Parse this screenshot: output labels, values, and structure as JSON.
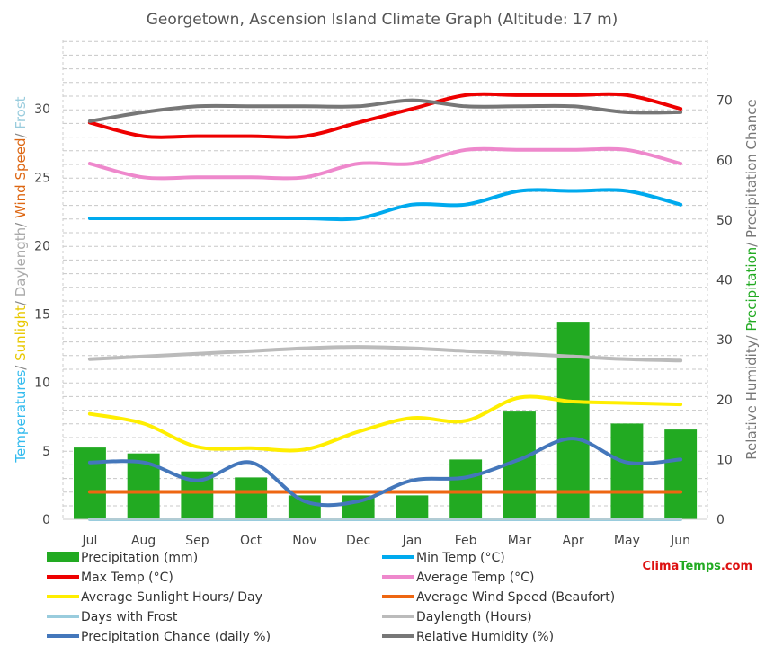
{
  "chart_data": {
    "type": "bar",
    "title": "Georgetown, Ascension Island Climate Graph (Altitude: 17 m)",
    "categories": [
      "Jul",
      "Aug",
      "Sep",
      "Oct",
      "Nov",
      "Dec",
      "Jan",
      "Feb",
      "Mar",
      "Apr",
      "May",
      "Jun"
    ],
    "y_left": {
      "ylim": [
        0,
        35
      ],
      "ticks": [
        0,
        5,
        10,
        15,
        20,
        25,
        30
      ],
      "label_parts": [
        {
          "text": "Temperatures",
          "color": "#33bbee"
        },
        {
          "text": "/",
          "color": "#888888"
        },
        {
          "text": " Sunlight",
          "color": "#e8c800"
        },
        {
          "text": "/ ",
          "color": "#888888"
        },
        {
          "text": "Daylength",
          "color": "#aaaaaa"
        },
        {
          "text": "/ ",
          "color": "#888888"
        },
        {
          "text": "Wind Speed",
          "color": "#dd6611"
        },
        {
          "text": "/ ",
          "color": "#888888"
        },
        {
          "text": "Frost",
          "color": "#99ccdd"
        }
      ]
    },
    "y_right": {
      "ylim": [
        0,
        80
      ],
      "ticks": [
        0,
        10,
        20,
        30,
        40,
        50,
        60,
        70
      ],
      "label_parts": [
        {
          "text": "Relative Humidity",
          "color": "#777777"
        },
        {
          "text": "/ ",
          "color": "#888888"
        },
        {
          "text": "Precipitation",
          "color": "#22aa22"
        },
        {
          "text": "/ Precipitation Chance",
          "color": "#777777"
        }
      ]
    },
    "grid": "horizontal-dashed",
    "series": [
      {
        "name": "Precipitation (mm)",
        "kind": "bar",
        "axis": "right",
        "color": "#22aa22",
        "values": [
          12,
          11,
          8,
          7,
          4,
          4,
          4,
          10,
          18,
          33,
          16,
          15
        ]
      },
      {
        "name": "Min Temp (°C)",
        "kind": "line",
        "axis": "left",
        "color": "#00aaee",
        "values": [
          22,
          22,
          22,
          22,
          22,
          22,
          23,
          23,
          24,
          24,
          24,
          23
        ]
      },
      {
        "name": "Max Temp (°C)",
        "kind": "line",
        "axis": "left",
        "color": "#ee0000",
        "values": [
          29,
          28,
          28,
          28,
          28,
          29,
          30,
          31,
          31,
          31,
          31,
          30
        ]
      },
      {
        "name": "Average Temp (°C)",
        "kind": "line",
        "axis": "left",
        "color": "#ee88cc",
        "values": [
          26,
          25,
          25,
          25,
          25,
          26,
          26,
          27,
          27,
          27,
          27,
          26
        ]
      },
      {
        "name": "Average Sunlight Hours/ Day",
        "kind": "line",
        "axis": "left",
        "color": "#ffee00",
        "values": [
          7.7,
          7.0,
          5.3,
          5.2,
          5.1,
          6.4,
          7.4,
          7.2,
          8.9,
          8.6,
          8.5,
          8.4
        ]
      },
      {
        "name": "Average Wind Speed (Beaufort)",
        "kind": "line",
        "axis": "left",
        "color": "#ee6611",
        "values": [
          2,
          2,
          2,
          2,
          2,
          2,
          2,
          2,
          2,
          2,
          2,
          2
        ]
      },
      {
        "name": "Days with Frost",
        "kind": "line",
        "axis": "left",
        "color": "#99ccdd",
        "values": [
          0,
          0,
          0,
          0,
          0,
          0,
          0,
          0,
          0,
          0,
          0,
          0
        ]
      },
      {
        "name": "Daylength (Hours)",
        "kind": "line",
        "axis": "left",
        "color": "#bbbbbb",
        "values": [
          11.7,
          11.9,
          12.1,
          12.3,
          12.5,
          12.6,
          12.5,
          12.3,
          12.1,
          11.9,
          11.7,
          11.6
        ]
      },
      {
        "name": "Precipitation Chance (daily %)",
        "kind": "line",
        "axis": "right",
        "color": "#4477bb",
        "values": [
          9.5,
          9.5,
          6.5,
          9.5,
          3,
          3,
          6.5,
          7,
          10,
          13.5,
          9.5,
          10
        ]
      },
      {
        "name": "Relative Humidity (%)",
        "kind": "line",
        "axis": "right",
        "color": "#777777",
        "values": [
          66.5,
          68,
          69,
          69,
          69,
          69,
          70,
          69,
          69,
          69,
          68,
          68
        ]
      }
    ]
  },
  "brand": {
    "part1": "Clima",
    "part2": "Temps",
    "part3": ".com",
    "color1": "#dd1111",
    "color2": "#22aa22"
  }
}
